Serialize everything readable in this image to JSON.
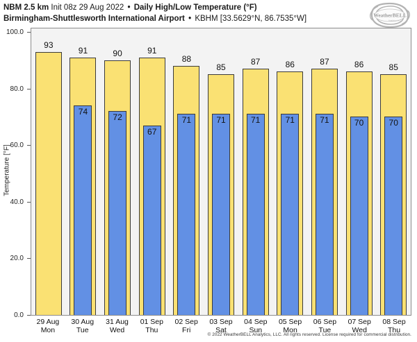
{
  "header": {
    "model": "NBM 2.5 km",
    "init": "Init 08z 29 Aug 2022",
    "bullet": "•",
    "product": "Daily High/Low Temperature (°F)",
    "location": "Birmingham-Shuttlesworth International Airport",
    "station": "KBHM [33.5629°N, 86.7535°W]"
  },
  "logo": {
    "brand": "WeatherBELL",
    "subtext": "Analytics LLC"
  },
  "chart_data": {
    "type": "bar",
    "title": "Daily High/Low Temperature (°F)",
    "ylabel": "Temperature [°F]",
    "ylim": [
      0,
      100
    ],
    "ytick_values": [
      0,
      20,
      40,
      60,
      80,
      100
    ],
    "ytick_labels": [
      "0.0",
      "20.0",
      "40.0",
      "60.0",
      "80.0",
      "100.0"
    ],
    "grid": false,
    "legend": false,
    "categories": [
      {
        "date": "29 Aug",
        "day": "Mon"
      },
      {
        "date": "30 Aug",
        "day": "Tue"
      },
      {
        "date": "31 Aug",
        "day": "Wed"
      },
      {
        "date": "01 Sep",
        "day": "Thu"
      },
      {
        "date": "02 Sep",
        "day": "Fri"
      },
      {
        "date": "03 Sep",
        "day": "Sat"
      },
      {
        "date": "04 Sep",
        "day": "Sun"
      },
      {
        "date": "05 Sep",
        "day": "Mon"
      },
      {
        "date": "06 Sep",
        "day": "Tue"
      },
      {
        "date": "07 Sep",
        "day": "Wed"
      },
      {
        "date": "08 Sep",
        "day": "Thu"
      }
    ],
    "series": [
      {
        "name": "High",
        "color": "#FAE173",
        "values": [
          93,
          91,
          90,
          91,
          88,
          85,
          87,
          86,
          87,
          86,
          85
        ]
      },
      {
        "name": "Low",
        "color": "#6290E4",
        "values": [
          null,
          74,
          72,
          67,
          71,
          71,
          71,
          71,
          71,
          70,
          70
        ]
      }
    ]
  },
  "footer": {
    "copyright": "© 2022 WeatherBELL Analytics, LLC. All rights reserved. License required for commercial distribution."
  },
  "colors": {
    "high_bar": "#FAE173",
    "low_bar": "#6290E4",
    "bar_border": "#3A3A3A",
    "plot_bg": "#F3F3F3",
    "frame_border": "#8C8C8C",
    "page_bg": "#FFFFFF",
    "logo_gray": "#ADADAD"
  }
}
